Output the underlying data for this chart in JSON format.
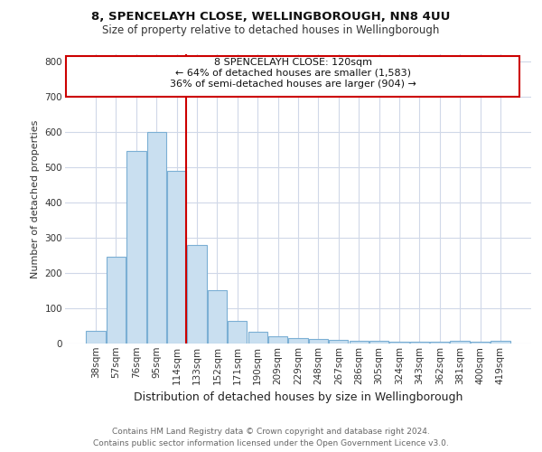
{
  "title1": "8, SPENCELAYH CLOSE, WELLINGBOROUGH, NN8 4UU",
  "title2": "Size of property relative to detached houses in Wellingborough",
  "xlabel": "Distribution of detached houses by size in Wellingborough",
  "ylabel": "Number of detached properties",
  "categories": [
    "38sqm",
    "57sqm",
    "76sqm",
    "95sqm",
    "114sqm",
    "133sqm",
    "152sqm",
    "171sqm",
    "190sqm",
    "209sqm",
    "229sqm",
    "248sqm",
    "267sqm",
    "286sqm",
    "305sqm",
    "324sqm",
    "343sqm",
    "362sqm",
    "381sqm",
    "400sqm",
    "419sqm"
  ],
  "values": [
    35,
    245,
    545,
    600,
    490,
    280,
    150,
    65,
    33,
    20,
    15,
    12,
    10,
    8,
    7,
    6,
    5,
    5,
    8,
    5,
    7
  ],
  "bar_color": "#c9dff0",
  "bar_edge_color": "#7bafd4",
  "vline_color": "#cc0000",
  "annotation_line1": "8 SPENCELAYH CLOSE: 120sqm",
  "annotation_line2": "← 64% of detached houses are smaller (1,583)",
  "annotation_line3": "36% of semi-detached houses are larger (904) →",
  "annotation_box_edge": "#cc0000",
  "ylim": [
    0,
    820
  ],
  "yticks": [
    0,
    100,
    200,
    300,
    400,
    500,
    600,
    700,
    800
  ],
  "footer_line1": "Contains HM Land Registry data © Crown copyright and database right 2024.",
  "footer_line2": "Contains public sector information licensed under the Open Government Licence v3.0.",
  "background_color": "#ffffff",
  "grid_color": "#d0d8e8",
  "title1_fontsize": 9.5,
  "title2_fontsize": 8.5,
  "ylabel_fontsize": 8,
  "xlabel_fontsize": 9,
  "tick_fontsize": 7.5,
  "annot_fontsize": 8,
  "footer_fontsize": 6.5
}
